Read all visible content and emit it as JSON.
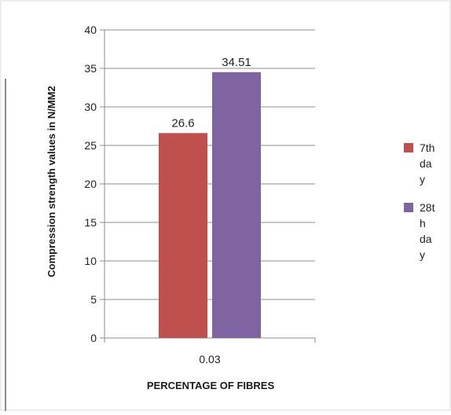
{
  "chart_data": {
    "type": "bar",
    "categories": [
      "0.03"
    ],
    "series": [
      {
        "name": "7th day",
        "legend_lines": [
          "7th",
          "da",
          "y"
        ],
        "values": [
          26.6
        ],
        "color": "#C0504D"
      },
      {
        "name": "28th day",
        "legend_lines": [
          "28t",
          "h",
          "da",
          "y"
        ],
        "values": [
          34.51
        ],
        "color": "#8064A2"
      }
    ],
    "data_labels": [
      "26.6",
      "34.51"
    ],
    "title": "",
    "xlabel": "PERCENTAGE OF FIBRES",
    "ylabel": "Compression strength values in N/MM2",
    "ylim": [
      0,
      40
    ],
    "yticks": [
      0,
      5,
      10,
      15,
      20,
      25,
      30,
      35,
      40
    ],
    "grid": true,
    "legend": "right"
  }
}
